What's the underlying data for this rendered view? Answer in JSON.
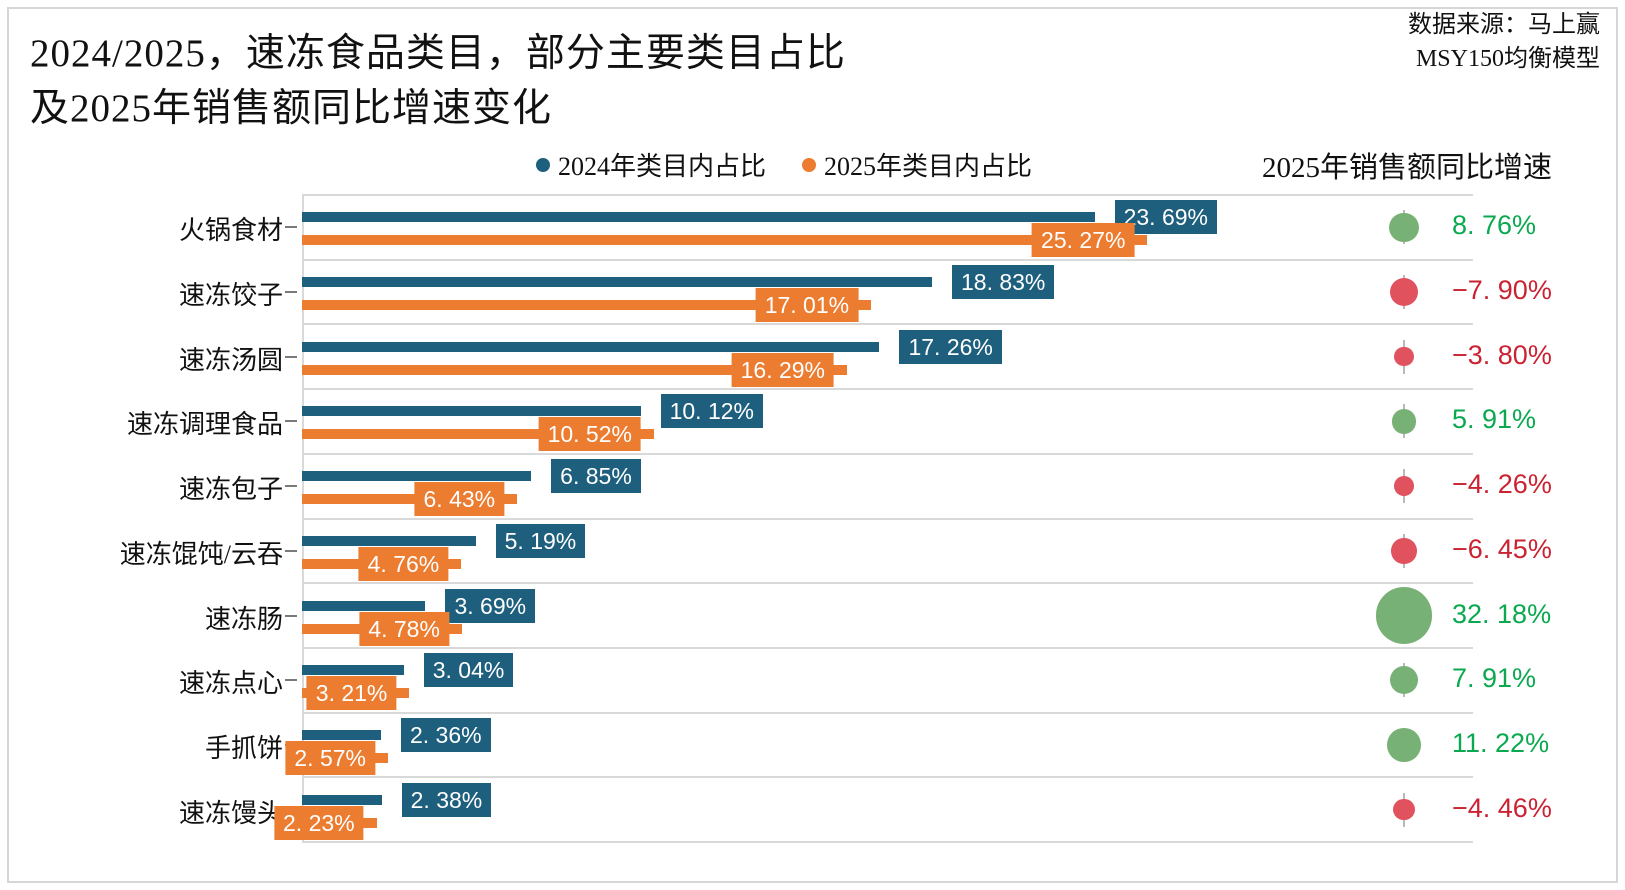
{
  "title": {
    "line1": "2024/2025，速冻食品类目，部分主要类目占比",
    "line2": "及2025年销售额同比增速变化"
  },
  "source": {
    "line1": "数据来源：马上赢",
    "line2": "MSY150均衡模型"
  },
  "legend": [
    {
      "label": "2024年类目内占比",
      "color": "#1E5F7E"
    },
    {
      "label": "2025年类目内占比",
      "color": "#EC7C30"
    }
  ],
  "growth_header": "2025年销售额同比增速",
  "colors": {
    "bar_2024": "#1E5F7E",
    "bar_2025": "#EC7C30",
    "circle_positive": "#78B175",
    "circle_negative": "#E1525F",
    "text_positive": "#0BA94F",
    "text_negative": "#CB2231",
    "gridline": "#D9D9D9"
  },
  "rows": [
    {
      "category": "火锅食材",
      "v2024": 23.69,
      "label_2024": "23. 69%",
      "v2025": 25.27,
      "label_2025": "25. 27%",
      "growth": 8.76,
      "growth_label": "8. 76%"
    },
    {
      "category": "速冻饺子",
      "v2024": 18.83,
      "label_2024": "18. 83%",
      "v2025": 17.01,
      "label_2025": "17. 01%",
      "growth": -7.9,
      "growth_label": "−7. 90%"
    },
    {
      "category": "速冻汤圆",
      "v2024": 17.26,
      "label_2024": "17. 26%",
      "v2025": 16.29,
      "label_2025": "16. 29%",
      "growth": -3.8,
      "growth_label": "−3. 80%"
    },
    {
      "category": "速冻调理食品",
      "v2024": 10.12,
      "label_2024": "10. 12%",
      "v2025": 10.52,
      "label_2025": "10. 52%",
      "growth": 5.91,
      "growth_label": "5. 91%"
    },
    {
      "category": "速冻包子",
      "v2024": 6.85,
      "label_2024": "6. 85%",
      "v2025": 6.43,
      "label_2025": "6. 43%",
      "growth": -4.26,
      "growth_label": "−4. 26%"
    },
    {
      "category": "速冻馄饨/云吞",
      "v2024": 5.19,
      "label_2024": "5. 19%",
      "v2025": 4.76,
      "label_2025": "4. 76%",
      "growth": -6.45,
      "growth_label": "−6. 45%"
    },
    {
      "category": "速冻肠",
      "v2024": 3.69,
      "label_2024": "3. 69%",
      "v2025": 4.78,
      "label_2025": "4. 78%",
      "growth": 32.18,
      "growth_label": "32. 18%"
    },
    {
      "category": "速冻点心",
      "v2024": 3.04,
      "label_2024": "3. 04%",
      "v2025": 3.21,
      "label_2025": "3. 21%",
      "growth": 7.91,
      "growth_label": "7. 91%"
    },
    {
      "category": "手抓饼",
      "v2024": 2.36,
      "label_2024": "2. 36%",
      "v2025": 2.57,
      "label_2025": "2. 57%",
      "growth": 11.22,
      "growth_label": "11. 22%"
    },
    {
      "category": "速冻馒头",
      "v2024": 2.38,
      "label_2024": "2. 38%",
      "v2025": 2.23,
      "label_2025": "2. 23%",
      "growth": -4.46,
      "growth_label": "−4. 46%"
    }
  ],
  "chart_data": {
    "type": "bar",
    "orientation": "horizontal",
    "title": "2024/2025，速冻食品类目，部分主要类目占比及2025年销售额同比增速变化",
    "categories": [
      "火锅食材",
      "速冻饺子",
      "速冻汤圆",
      "速冻调理食品",
      "速冻包子",
      "速冻馄饨/云吞",
      "速冻肠",
      "速冻点心",
      "手抓饼",
      "速冻馒头"
    ],
    "series": [
      {
        "name": "2024年类目内占比",
        "values": [
          23.69,
          18.83,
          17.26,
          10.12,
          6.85,
          5.19,
          3.69,
          3.04,
          2.36,
          2.38
        ]
      },
      {
        "name": "2025年类目内占比",
        "values": [
          25.27,
          17.01,
          16.29,
          10.52,
          6.43,
          4.76,
          4.78,
          3.21,
          2.57,
          2.23
        ]
      },
      {
        "name": "2025年销售额同比增速",
        "values": [
          8.76,
          -7.9,
          -3.8,
          5.91,
          -4.26,
          -6.45,
          32.18,
          7.91,
          11.22,
          -4.46
        ]
      }
    ],
    "xlabel": "",
    "ylabel": "",
    "xlim": [
      0,
      35
    ],
    "grid": true,
    "legend_position": "top",
    "value_labels": true
  }
}
